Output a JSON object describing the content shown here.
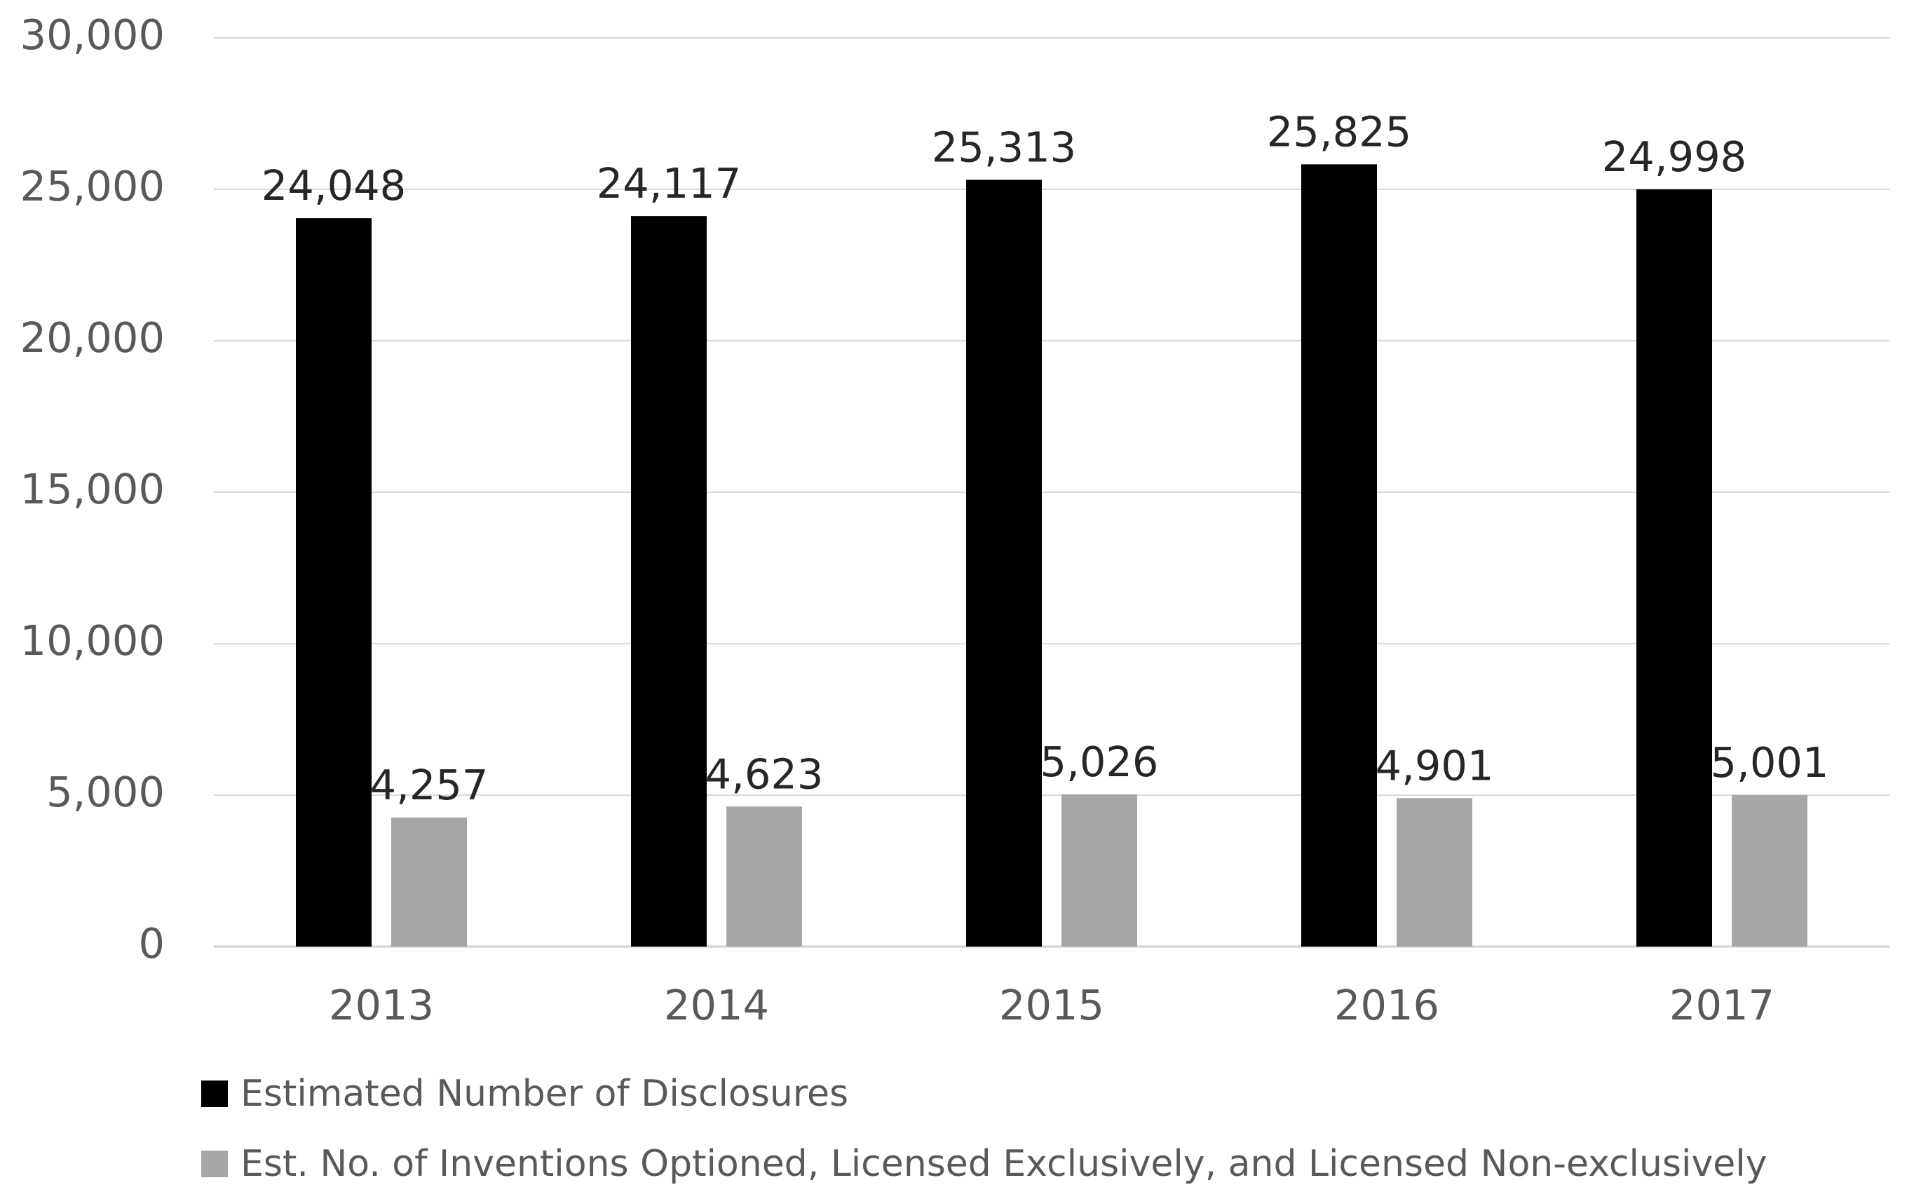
{
  "chart_data": {
    "type": "bar",
    "title": "",
    "xlabel": "",
    "ylabel": "",
    "categories": [
      "2013",
      "2014",
      "2015",
      "2016",
      "2017"
    ],
    "ylim": [
      0,
      30000
    ],
    "yticks": [
      0,
      5000,
      10000,
      15000,
      20000,
      25000,
      30000
    ],
    "ytick_labels": [
      "0",
      "5,000",
      "10,000",
      "15,000",
      "20,000",
      "25,000",
      "30,000"
    ],
    "grid": true,
    "legend_position": "bottom",
    "series": [
      {
        "name": "Estimated Number of Disclosures",
        "color": "#000000",
        "values": [
          24048,
          24117,
          25313,
          25825,
          24998
        ],
        "labels": [
          "24,048",
          "24,117",
          "25,313",
          "25,825",
          "24,998"
        ]
      },
      {
        "name": "Est. No. of Inventions Optioned, Licensed Exclusively, and Licensed Non-exclusively",
        "color": "#a6a6a6",
        "values": [
          4257,
          4623,
          5026,
          4901,
          5001
        ],
        "labels": [
          "4,257",
          "4,623",
          "5,026",
          "4,901",
          "5,001"
        ]
      }
    ]
  }
}
